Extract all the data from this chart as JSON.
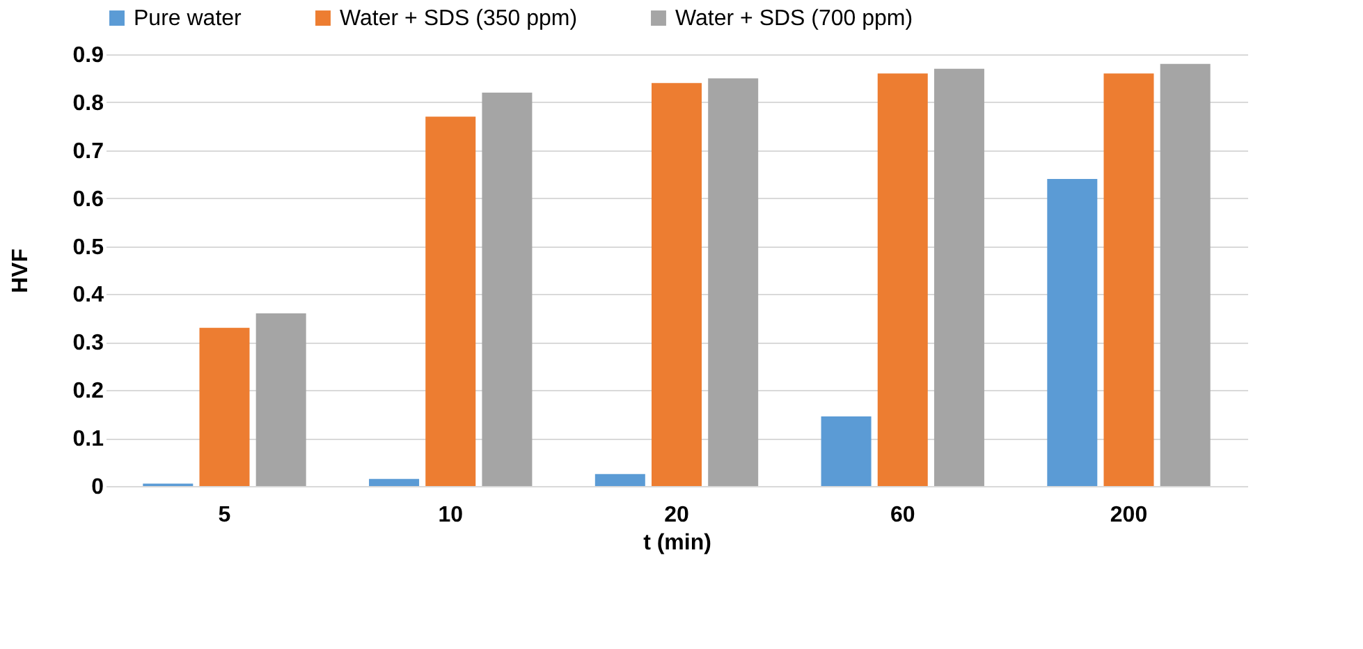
{
  "chart_data": {
    "type": "bar",
    "xlabel": "t (min)",
    "ylabel": "HVF",
    "categories": [
      "5",
      "10",
      "20",
      "60",
      "200"
    ],
    "series": [
      {
        "name": "Pure water",
        "color": "#5b9bd5",
        "values": [
          0.005,
          0.015,
          0.025,
          0.145,
          0.64
        ]
      },
      {
        "name": "Water + SDS (350 ppm)",
        "color": "#ed7d31",
        "values": [
          0.33,
          0.77,
          0.84,
          0.86,
          0.86
        ]
      },
      {
        "name": "Water + SDS (700 ppm)",
        "color": "#a5a5a5",
        "values": [
          0.36,
          0.82,
          0.85,
          0.87,
          0.88
        ]
      }
    ],
    "ylim": [
      0,
      0.9
    ],
    "yticks": [
      0,
      0.1,
      0.2,
      0.3,
      0.4,
      0.5,
      0.6,
      0.7,
      0.8,
      0.9
    ],
    "grid": "y",
    "legend": "top"
  }
}
